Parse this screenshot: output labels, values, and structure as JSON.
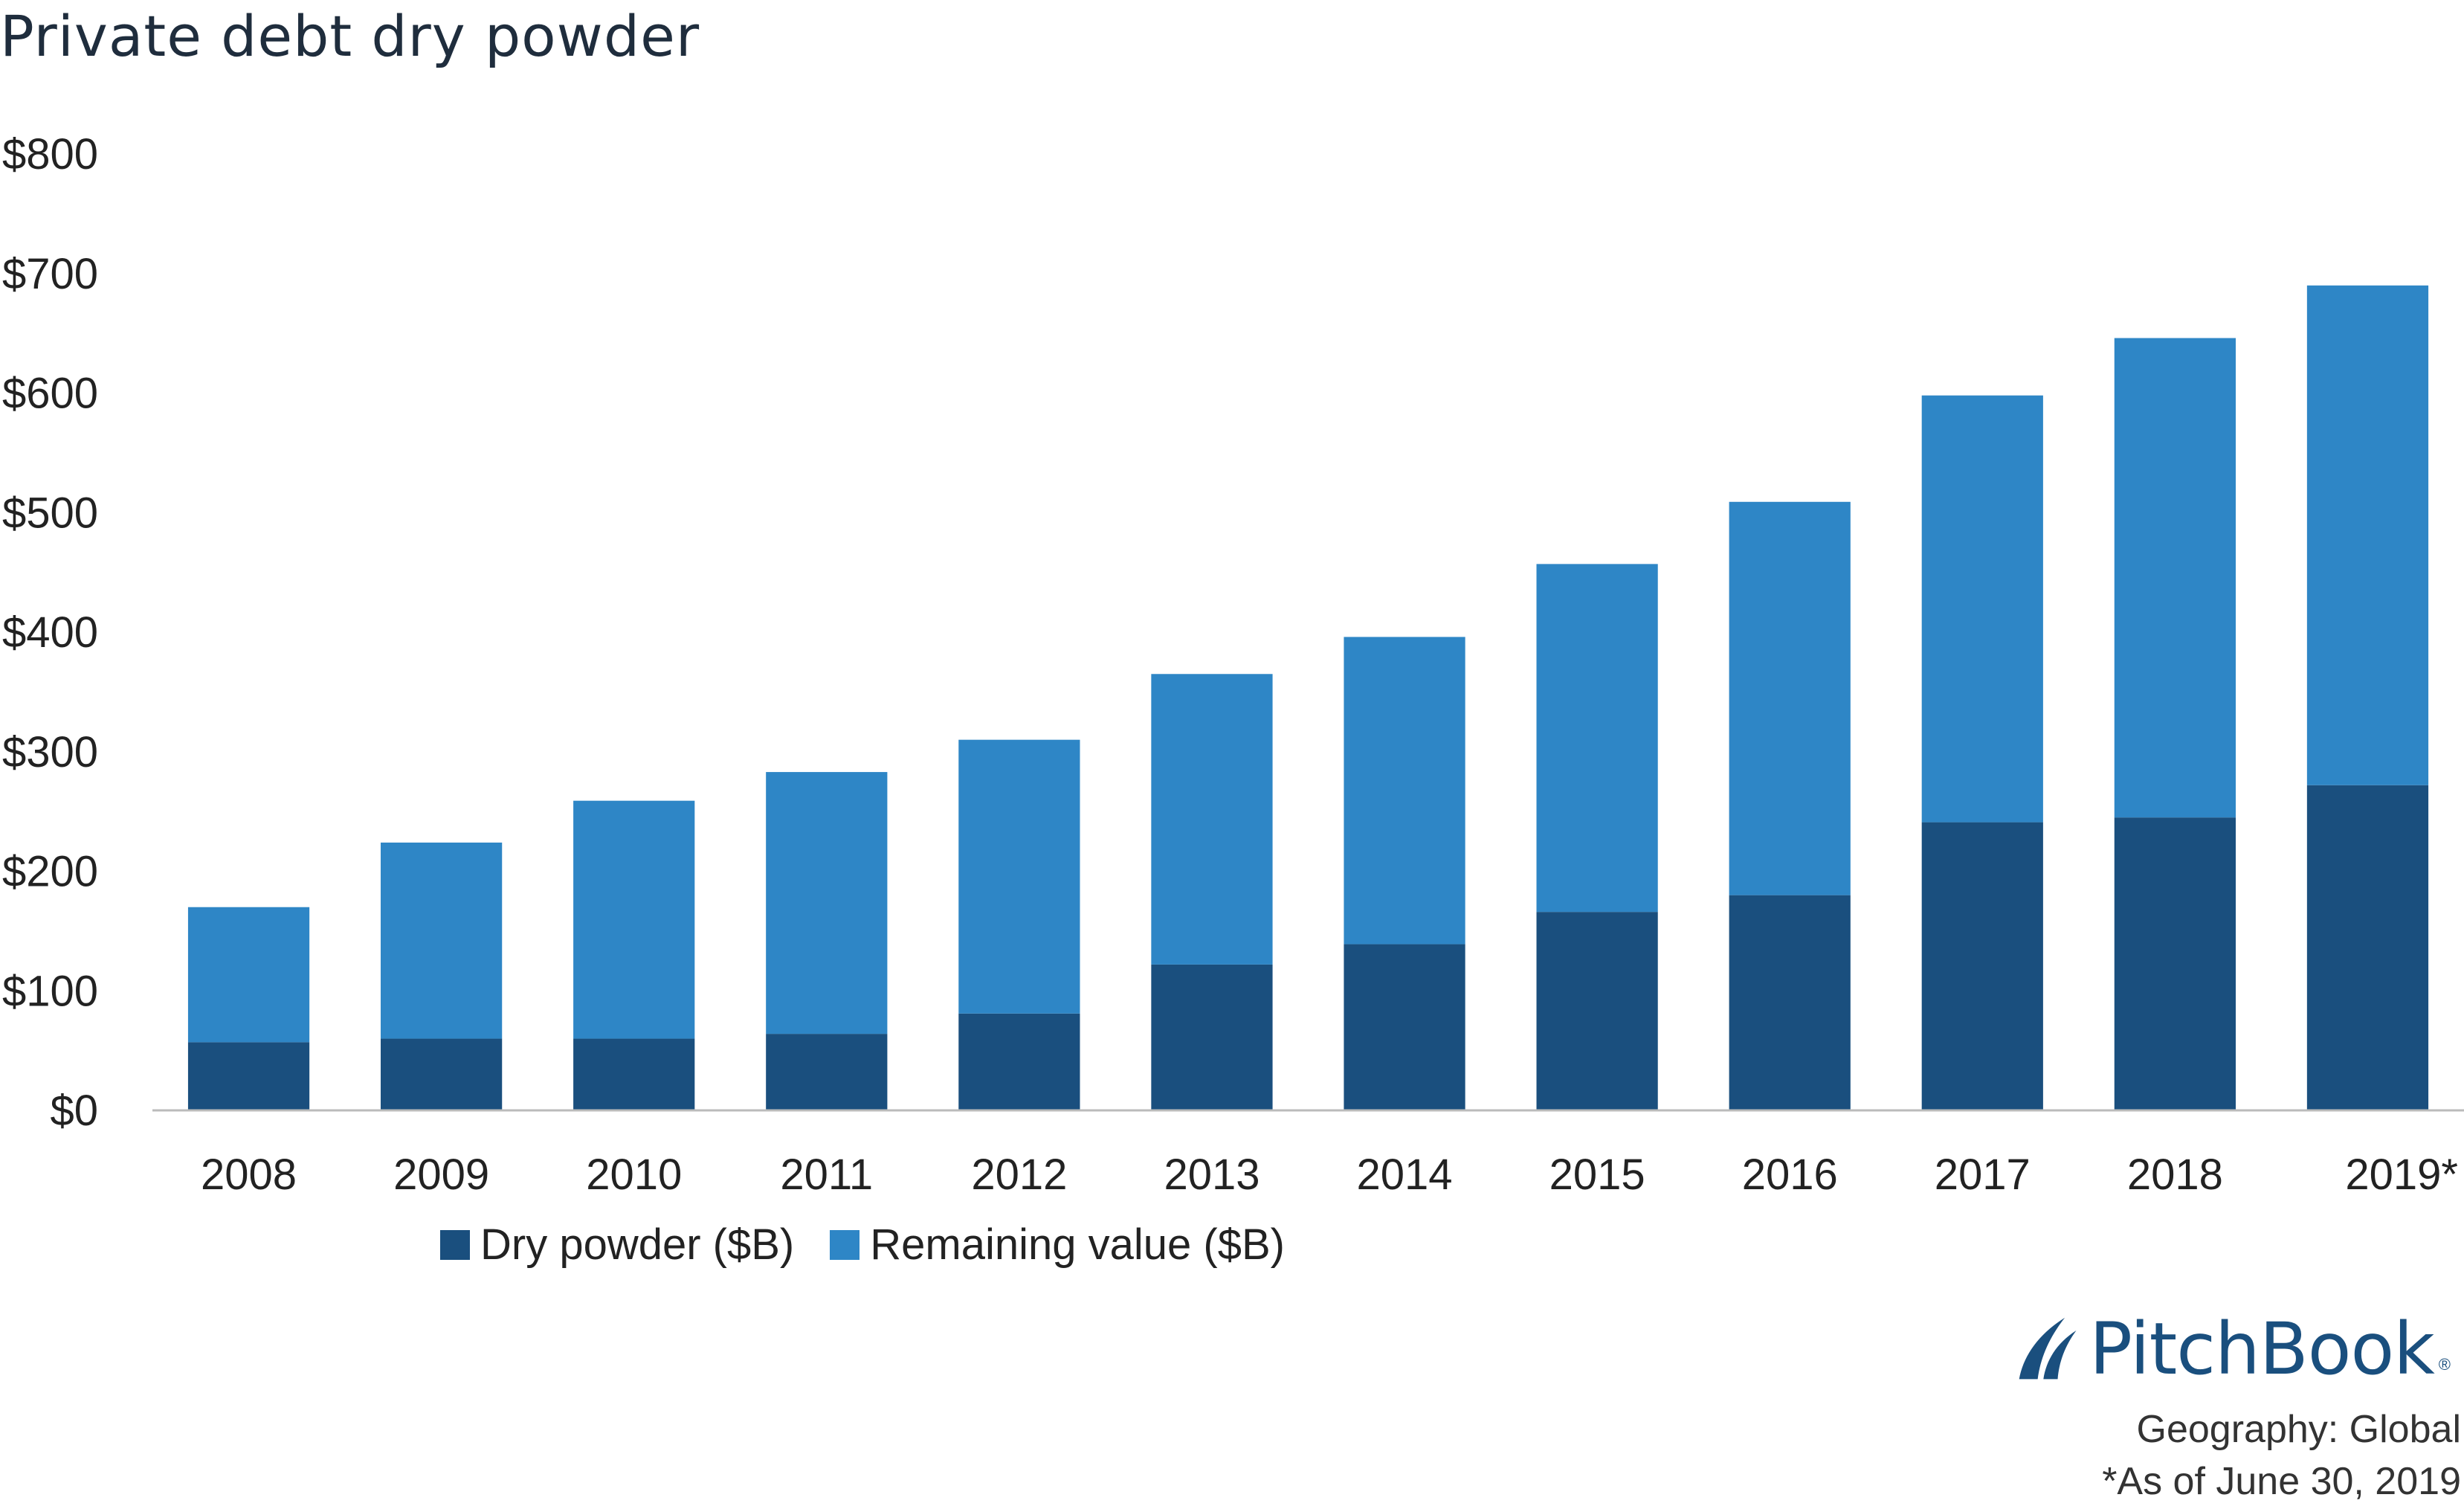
{
  "title": "Private debt dry powder",
  "colors": {
    "dry_powder": "#1a4f7e",
    "remaining_value": "#2e86c6",
    "axis": "#bbbbbb",
    "logo": "#1a4f7e"
  },
  "logo": {
    "name": "PitchBook",
    "mark": "sail-logo-icon",
    "reg": "®"
  },
  "footnotes": {
    "geography": "Geography: Global",
    "as_of": "*As of June 30, 2019"
  },
  "chart_data": {
    "type": "bar",
    "stacked": true,
    "title": "Private debt dry powder",
    "categories": [
      "2008",
      "2009",
      "2010",
      "2011",
      "2012",
      "2013",
      "2014",
      "2015",
      "2016",
      "2017",
      "2018",
      "2019*"
    ],
    "series": [
      {
        "name": "Dry powder ($B)",
        "values": [
          57,
          60,
          60,
          64,
          81,
          122,
          139,
          166,
          180,
          241,
          245,
          272
        ]
      },
      {
        "name": "Remaining value ($B)",
        "values": [
          113,
          164,
          199,
          219,
          229,
          243,
          257,
          291,
          329,
          357,
          401,
          418
        ]
      }
    ],
    "ylim": [
      0,
      800
    ],
    "yticks": [
      0,
      100,
      200,
      300,
      400,
      500,
      600,
      700,
      800
    ],
    "ytick_labels": [
      "$0",
      "$100",
      "$200",
      "$300",
      "$400",
      "$500",
      "$600",
      "$700",
      "$800"
    ],
    "xlabel": "",
    "ylabel": "",
    "grid": false,
    "legend": "bottom-center"
  }
}
